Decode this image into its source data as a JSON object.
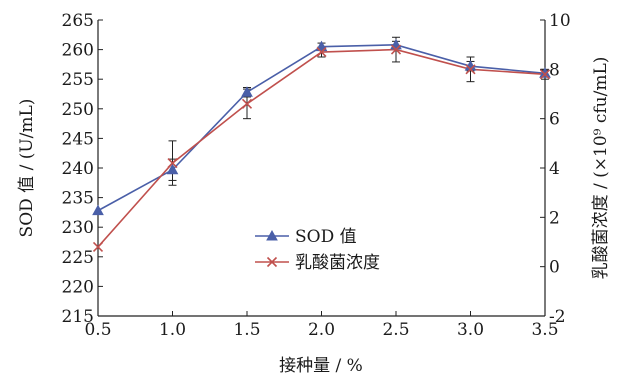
{
  "chart_data": {
    "type": "line",
    "title": "",
    "xlabel": "接种量 / %",
    "ylabel_left": "SOD 值 / (U/mL)",
    "ylabel_right": "乳酸菌浓度 / (×10⁹ cfu/mL)",
    "x": [
      0.5,
      1.0,
      1.5,
      2.0,
      2.5,
      3.0,
      3.5
    ],
    "x_ticks": [
      "0.5",
      "1.0",
      "1.5",
      "2.0",
      "2.5",
      "3.0",
      "3.5"
    ],
    "xlim": [
      0.5,
      3.5
    ],
    "ylim_left": [
      215,
      265
    ],
    "ylim_right": [
      -2,
      10
    ],
    "y_ticks_left": [
      "215",
      "220",
      "225",
      "230",
      "235",
      "240",
      "245",
      "250",
      "255",
      "260",
      "265"
    ],
    "y_ticks_right": [
      "-2",
      "0",
      "2",
      "4",
      "6",
      "8",
      "10"
    ],
    "grid": false,
    "legend_position": "center",
    "series": [
      {
        "name": "SOD 值",
        "axis": "left",
        "color": "#4a5fa8",
        "marker": "triangle",
        "values": [
          232.8,
          239.7,
          252.8,
          260.5,
          260.8,
          257.2,
          256.0
        ],
        "error": [
          0,
          1.8,
          0.8,
          0.6,
          0.6,
          0.8,
          0.5
        ]
      },
      {
        "name": "乳酸菌浓度",
        "axis": "right",
        "color": "#c0504d",
        "marker": "x",
        "values": [
          0.8,
          4.2,
          6.6,
          8.7,
          8.8,
          8.0,
          7.8
        ],
        "error": [
          0,
          0.9,
          0.6,
          0.2,
          0.5,
          0.5,
          0.2
        ]
      }
    ]
  }
}
